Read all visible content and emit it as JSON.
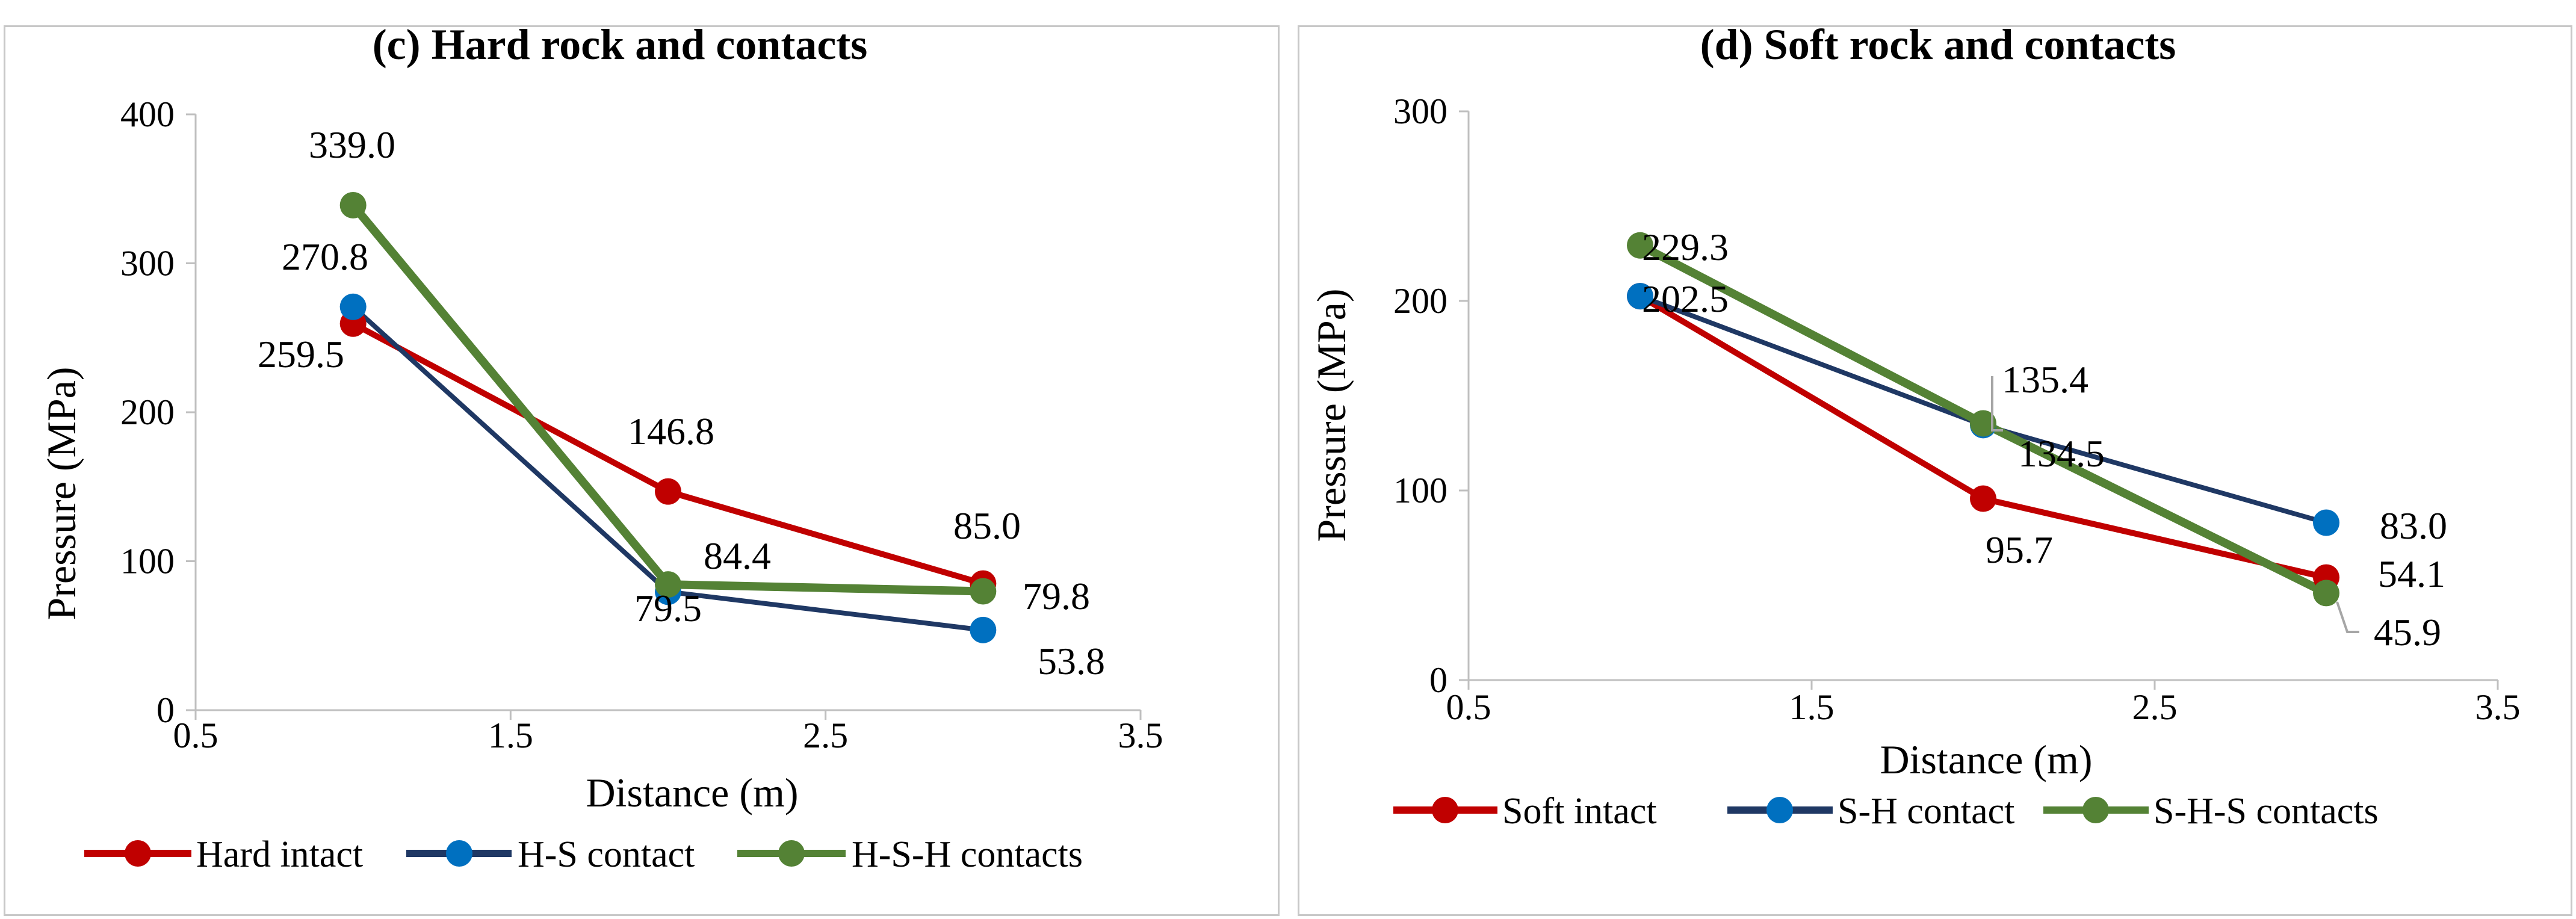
{
  "chart_data": [
    {
      "type": "line",
      "title": "(c) Hard rock and contacts",
      "xlabel": "Distance (m)",
      "ylabel": "Pressure (MPa)",
      "xlim": [
        0.5,
        3.5
      ],
      "ylim": [
        0,
        400
      ],
      "xticks": [
        "0.5",
        "1.5",
        "2.5",
        "3.5"
      ],
      "yticks": [
        "0",
        "100",
        "200",
        "300",
        "400"
      ],
      "x": [
        1,
        2,
        3
      ],
      "series": [
        {
          "name": "Hard intact",
          "color": "#c00000",
          "values": [
            259.5,
            146.8,
            85.0
          ],
          "labels": [
            "259.5",
            "146.8",
            "85.0"
          ]
        },
        {
          "name": "H-S contact",
          "color": "#1f3864",
          "marker_color": "#0070c0",
          "values": [
            270.8,
            79.5,
            53.8
          ],
          "labels": [
            "270.8",
            "79.5",
            "53.8"
          ]
        },
        {
          "name": "H-S-H contacts",
          "color": "#548235",
          "values": [
            339.0,
            84.4,
            79.8
          ],
          "labels": [
            "339.0",
            "84.4",
            "79.8"
          ]
        }
      ]
    },
    {
      "type": "line",
      "title": "(d) Soft rock and contacts",
      "xlabel": "Distance (m)",
      "ylabel": "Pressure (MPa)",
      "xlim": [
        0.5,
        3.5
      ],
      "ylim": [
        0,
        300
      ],
      "xticks": [
        "0.5",
        "1.5",
        "2.5",
        "3.5"
      ],
      "yticks": [
        "0",
        "100",
        "200",
        "300"
      ],
      "x": [
        1,
        2,
        3
      ],
      "series": [
        {
          "name": "Soft intact",
          "color": "#c00000",
          "values": [
            202.5,
            95.7,
            54.1
          ],
          "labels": [
            "202.5",
            "95.7",
            "54.1"
          ]
        },
        {
          "name": "S-H contact",
          "color": "#1f3864",
          "marker_color": "#0070c0",
          "values": [
            202.5,
            134.5,
            83.0
          ],
          "labels": [
            "202.5",
            "134.5",
            "83.0"
          ]
        },
        {
          "name": "S-H-S contacts",
          "color": "#548235",
          "values": [
            229.3,
            135.4,
            45.9
          ],
          "labels": [
            "229.3",
            "135.4",
            "45.9"
          ]
        }
      ]
    }
  ]
}
